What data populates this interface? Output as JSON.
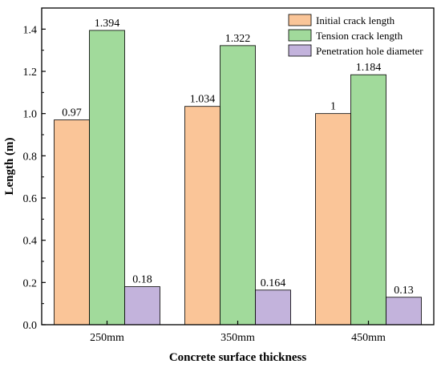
{
  "chart_data": {
    "type": "bar",
    "categories": [
      "250mm",
      "350mm",
      "450mm"
    ],
    "series": [
      {
        "name": "Initial crack length",
        "values": [
          0.97,
          1.034,
          1
        ],
        "labels": [
          "0.97",
          "1.034",
          "1"
        ],
        "color": "#fac598"
      },
      {
        "name": "Tension crack length",
        "values": [
          1.394,
          1.322,
          1.184
        ],
        "labels": [
          "1.394",
          "1.322",
          "1.184"
        ],
        "color": "#a1da9b"
      },
      {
        "name": "Penetration hole diameter",
        "values": [
          0.18,
          0.164,
          0.13
        ],
        "labels": [
          "0.18",
          "0.164",
          "0.13"
        ],
        "color": "#c3b3dc"
      }
    ],
    "title": "",
    "xlabel": "Concrete surface thickness",
    "ylabel": "Length (m)",
    "ylim": [
      0,
      1.5
    ],
    "yticks": [
      "0.0",
      "0.2",
      "0.4",
      "0.6",
      "0.8",
      "1.0",
      "1.2",
      "1.4"
    ],
    "legend_position": "top-right",
    "grid": false
  }
}
